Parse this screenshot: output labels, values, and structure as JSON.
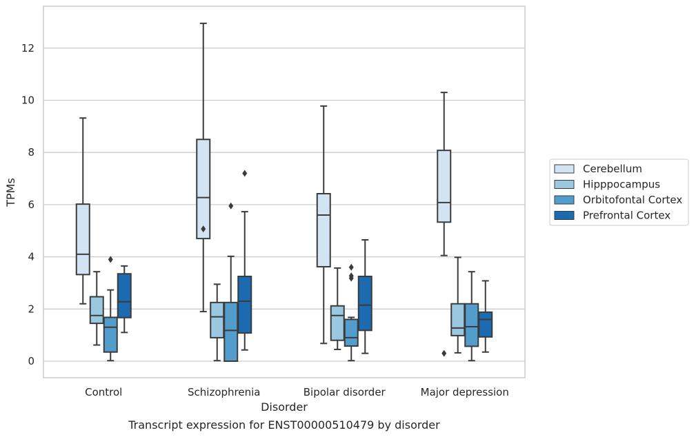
{
  "caption": "Transcript expression for ENST00000510479 by disorder",
  "chart_data": {
    "type": "box",
    "xlabel": "Disorder",
    "ylabel": "TPMs",
    "ylim": [
      -0.6,
      13.6
    ],
    "yticks": [
      0,
      2,
      4,
      6,
      8,
      10,
      12
    ],
    "grid": "horizontal",
    "legend_position": "right",
    "categories": [
      "Control",
      "Schizophrenia",
      "Bipolar disorder",
      "Major depression"
    ],
    "series": [
      {
        "name": "Cerebellum",
        "color": "#d2e3f3",
        "boxes": [
          {
            "whislo": 2.2,
            "q1": 3.32,
            "med": 4.1,
            "q3": 6.02,
            "whishi": 9.32,
            "fliers": []
          },
          {
            "whislo": 1.9,
            "q1": 4.7,
            "med": 6.27,
            "q3": 8.5,
            "whishi": 12.95,
            "fliers": [
              5.07
            ]
          },
          {
            "whislo": 0.68,
            "q1": 3.62,
            "med": 5.6,
            "q3": 6.42,
            "whishi": 9.78,
            "fliers": []
          },
          {
            "whislo": 4.05,
            "q1": 5.33,
            "med": 6.08,
            "q3": 8.08,
            "whishi": 10.3,
            "fliers": [
              0.3
            ]
          }
        ]
      },
      {
        "name": "Hipppocampus",
        "color": "#9ac8e0",
        "boxes": [
          {
            "whislo": 0.62,
            "q1": 1.45,
            "med": 1.75,
            "q3": 2.47,
            "whishi": 3.43,
            "fliers": []
          },
          {
            "whislo": 0.02,
            "q1": 0.9,
            "med": 1.7,
            "q3": 2.25,
            "whishi": 2.95,
            "fliers": []
          },
          {
            "whislo": 0.45,
            "q1": 0.8,
            "med": 1.75,
            "q3": 2.12,
            "whishi": 3.57,
            "fliers": []
          },
          {
            "whislo": 0.32,
            "q1": 0.98,
            "med": 1.27,
            "q3": 2.2,
            "whishi": 3.98,
            "fliers": []
          }
        ]
      },
      {
        "name": "Orbitofontal Cortex",
        "color": "#529dcc",
        "boxes": [
          {
            "whislo": 0.02,
            "q1": 0.35,
            "med": 1.3,
            "q3": 1.68,
            "whishi": 2.73,
            "fliers": [
              3.9
            ]
          },
          {
            "whislo": 0.0,
            "q1": 0.0,
            "med": 1.18,
            "q3": 2.25,
            "whishi": 4.02,
            "fliers": [
              5.95
            ]
          },
          {
            "whislo": 0.02,
            "q1": 0.58,
            "med": 0.9,
            "q3": 1.6,
            "whishi": 1.68,
            "fliers": [
              3.6,
              3.27,
              3.18
            ]
          },
          {
            "whislo": 0.02,
            "q1": 0.57,
            "med": 1.32,
            "q3": 2.2,
            "whishi": 3.43,
            "fliers": []
          }
        ]
      },
      {
        "name": "Prefrontal Cortex",
        "color": "#1c6aaf",
        "boxes": [
          {
            "whislo": 1.1,
            "q1": 1.67,
            "med": 2.28,
            "q3": 3.35,
            "whishi": 3.65,
            "fliers": []
          },
          {
            "whislo": 0.43,
            "q1": 1.08,
            "med": 2.3,
            "q3": 3.25,
            "whishi": 5.73,
            "fliers": [
              7.2
            ]
          },
          {
            "whislo": 0.3,
            "q1": 1.18,
            "med": 2.15,
            "q3": 3.25,
            "whishi": 4.65,
            "fliers": []
          },
          {
            "whislo": 0.35,
            "q1": 0.93,
            "med": 1.6,
            "q3": 1.88,
            "whishi": 3.08,
            "fliers": []
          }
        ]
      }
    ]
  }
}
